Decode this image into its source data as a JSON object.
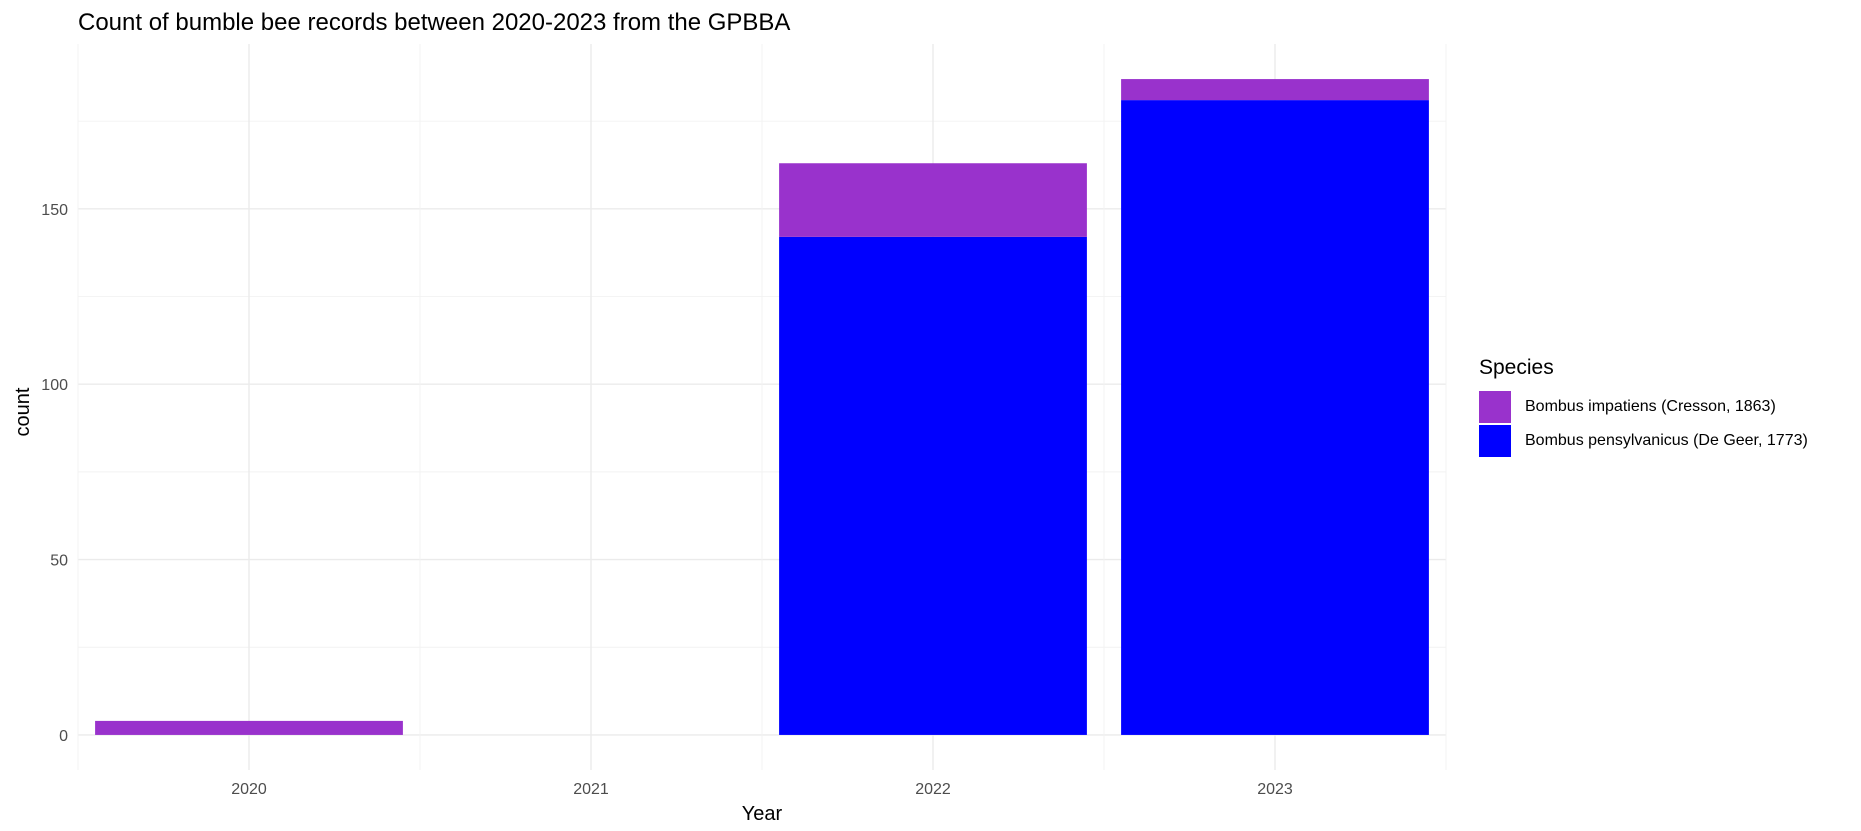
{
  "chart_data": {
    "type": "bar",
    "stacked": true,
    "title": "Count of bumble bee records between 2020-2023 from the GPBBA",
    "xlabel": "Year",
    "ylabel": "count",
    "categories": [
      "2020",
      "2021",
      "2022",
      "2023"
    ],
    "series": [
      {
        "name": "Bombus impatiens (Cresson, 1863)",
        "color": "#9932CC",
        "values": [
          4,
          0,
          21,
          6
        ]
      },
      {
        "name": "Bombus pensylvanicus (De Geer, 1773)",
        "color": "#0000FF",
        "values": [
          0,
          0,
          142,
          181
        ]
      }
    ],
    "yticks": [
      0,
      50,
      100,
      150
    ],
    "ylim": [
      -10,
      197
    ],
    "grid": true,
    "legend": {
      "title": "Species",
      "position": "right"
    }
  }
}
